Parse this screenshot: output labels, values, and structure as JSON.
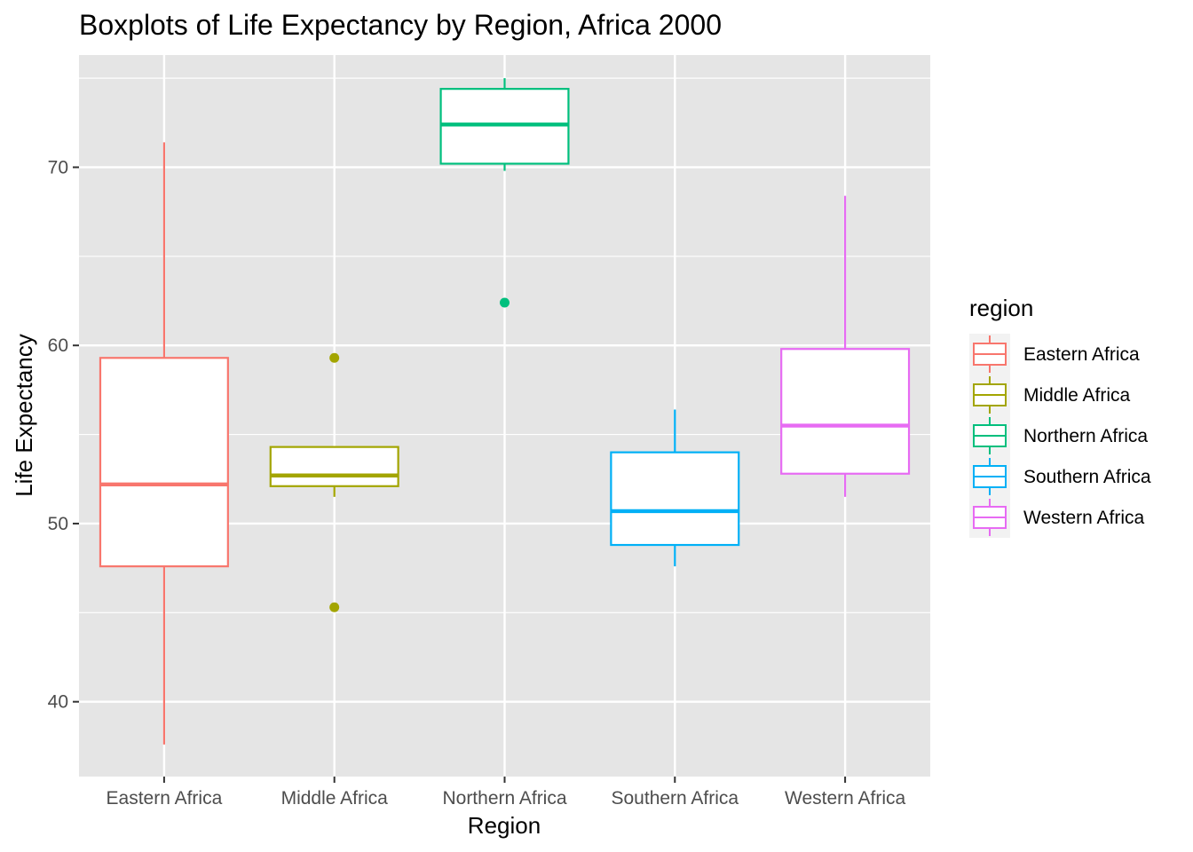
{
  "chart_data": {
    "type": "boxplot",
    "title": "Boxplots of Life Expectancy by Region, Africa 2000",
    "xlabel": "Region",
    "ylabel": "Life Expectancy",
    "ylim": [
      35.8,
      76.3
    ],
    "y_ticks": [
      40,
      50,
      60,
      70
    ],
    "y_tick_labels": [
      "40",
      "50",
      "60",
      "70"
    ],
    "grid": true,
    "categories": [
      "Eastern Africa",
      "Middle Africa",
      "Northern Africa",
      "Southern Africa",
      "Western Africa"
    ],
    "boxes": [
      {
        "category": "Eastern Africa",
        "whisker_low": 37.6,
        "q1": 47.6,
        "median": 52.2,
        "q3": 59.3,
        "whisker_high": 71.4,
        "outliers": []
      },
      {
        "category": "Middle Africa",
        "whisker_low": 51.5,
        "q1": 52.1,
        "median": 52.7,
        "q3": 54.3,
        "whisker_high": 54.3,
        "outliers": [
          59.3,
          45.3
        ]
      },
      {
        "category": "Northern Africa",
        "whisker_low": 69.8,
        "q1": 70.2,
        "median": 72.4,
        "q3": 74.4,
        "whisker_high": 75.0,
        "outliers": [
          62.4
        ]
      },
      {
        "category": "Southern Africa",
        "whisker_low": 47.6,
        "q1": 48.8,
        "median": 50.7,
        "q3": 54.0,
        "whisker_high": 56.4,
        "outliers": []
      },
      {
        "category": "Western Africa",
        "whisker_low": 51.5,
        "q1": 52.8,
        "median": 55.5,
        "q3": 59.8,
        "whisker_high": 68.4,
        "outliers": []
      }
    ],
    "legend": {
      "title": "region",
      "position": "right",
      "items": [
        {
          "label": "Eastern Africa",
          "color": "#F8766D"
        },
        {
          "label": "Middle Africa",
          "color": "#A3A500"
        },
        {
          "label": "Northern Africa",
          "color": "#00BF7D"
        },
        {
          "label": "Southern Africa",
          "color": "#00B0F6"
        },
        {
          "label": "Western Africa",
          "color": "#E76BF3"
        }
      ]
    },
    "colors": {
      "panel_background": "#E5E5E5",
      "grid": "#FFFFFF",
      "box_fill": "#FFFFFF"
    }
  }
}
